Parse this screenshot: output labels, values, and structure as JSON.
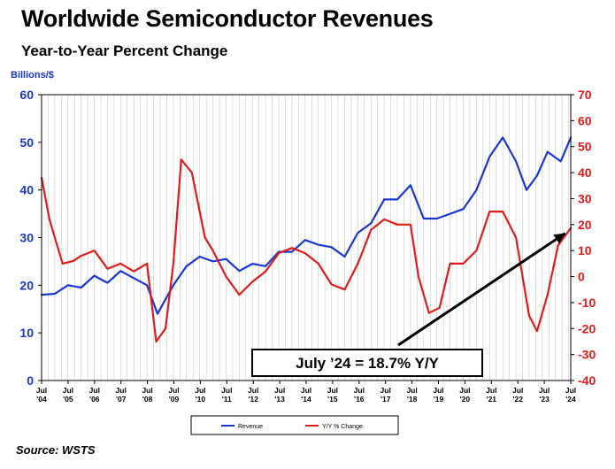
{
  "page": {
    "title": "Worldwide Semiconductor Revenues",
    "subtitle": "Year-to-Year Percent Change",
    "source": "Source: WSTS"
  },
  "chart_data": {
    "type": "line",
    "title": "Worldwide Semiconductor Revenues",
    "subtitle": "Year-to-Year Percent Change",
    "ylabel_left": "Billions/$",
    "ylim_left": [
      0,
      60
    ],
    "yticks_left": [
      0,
      10,
      20,
      30,
      40,
      50,
      60
    ],
    "ylim_right": [
      -40,
      70
    ],
    "yticks_right": [
      -40,
      -30,
      -20,
      -10,
      0,
      10,
      20,
      30,
      40,
      50,
      60,
      70
    ],
    "x_tick_labels": [
      "Jul\n'04",
      "Jul\n'05",
      "Jul\n'06",
      "Jul\n'07",
      "Jul\n'08",
      "Jul\n'09",
      "Jul\n'10",
      "Jul\n'11",
      "Jul\n'12",
      "Jul\n'13",
      "Jul\n'14",
      "Jul\n'15",
      "Jul\n'16",
      "Jul\n'17",
      "Jul\n'18",
      "Jul\n'19",
      "Jul\n'20",
      "Jul\n'21",
      "Jul\n'22",
      "Jul\n'23",
      "Jul\n'24"
    ],
    "grid": true,
    "legend": "bottom-center",
    "series": [
      {
        "name": "Revenue",
        "axis": "left",
        "color": "#1a35d6",
        "points": [
          [
            2004.5,
            18
          ],
          [
            2005,
            18.2
          ],
          [
            2005.5,
            20
          ],
          [
            2006,
            19.5
          ],
          [
            2006.5,
            22
          ],
          [
            2007,
            20.5
          ],
          [
            2007.5,
            23
          ],
          [
            2008,
            21.5
          ],
          [
            2008.5,
            20
          ],
          [
            2008.9,
            14
          ],
          [
            2009.5,
            20
          ],
          [
            2010,
            24
          ],
          [
            2010.5,
            26
          ],
          [
            2011,
            25
          ],
          [
            2011.5,
            25.5
          ],
          [
            2012,
            23
          ],
          [
            2012.5,
            24.5
          ],
          [
            2013,
            24
          ],
          [
            2013.5,
            27
          ],
          [
            2014,
            27
          ],
          [
            2014.5,
            29.5
          ],
          [
            2015,
            28.5
          ],
          [
            2015.5,
            28
          ],
          [
            2016,
            26
          ],
          [
            2016.5,
            31
          ],
          [
            2017,
            33
          ],
          [
            2017.5,
            38
          ],
          [
            2018,
            38
          ],
          [
            2018.5,
            41
          ],
          [
            2019,
            34
          ],
          [
            2019.5,
            34
          ],
          [
            2020,
            35
          ],
          [
            2020.5,
            36
          ],
          [
            2021,
            40
          ],
          [
            2021.5,
            47
          ],
          [
            2022,
            51
          ],
          [
            2022.5,
            46
          ],
          [
            2022.9,
            40
          ],
          [
            2023.3,
            43
          ],
          [
            2023.7,
            48
          ],
          [
            2024.2,
            46
          ],
          [
            2024.58,
            51
          ]
        ]
      },
      {
        "name": "Y/Y % Change",
        "axis": "right",
        "color": "#e31a1a",
        "points": [
          [
            2004.5,
            38
          ],
          [
            2004.8,
            22
          ],
          [
            2005,
            15
          ],
          [
            2005.3,
            5
          ],
          [
            2005.7,
            6
          ],
          [
            2006,
            8
          ],
          [
            2006.5,
            10
          ],
          [
            2007,
            3
          ],
          [
            2007.5,
            5
          ],
          [
            2008,
            2
          ],
          [
            2008.5,
            5
          ],
          [
            2008.85,
            -25
          ],
          [
            2009.2,
            -20
          ],
          [
            2009.5,
            5
          ],
          [
            2009.8,
            45
          ],
          [
            2010.2,
            40
          ],
          [
            2010.7,
            15
          ],
          [
            2011,
            10
          ],
          [
            2011.5,
            0
          ],
          [
            2012,
            -7
          ],
          [
            2012.5,
            -2
          ],
          [
            2013,
            2
          ],
          [
            2013.5,
            9
          ],
          [
            2014,
            11
          ],
          [
            2014.5,
            9
          ],
          [
            2015,
            5
          ],
          [
            2015.5,
            -3
          ],
          [
            2016,
            -5
          ],
          [
            2016.5,
            5
          ],
          [
            2017,
            18
          ],
          [
            2017.5,
            22
          ],
          [
            2018,
            20
          ],
          [
            2018.5,
            20
          ],
          [
            2018.8,
            0
          ],
          [
            2019.2,
            -14
          ],
          [
            2019.6,
            -12
          ],
          [
            2020,
            5
          ],
          [
            2020.5,
            5
          ],
          [
            2021,
            10
          ],
          [
            2021.5,
            25
          ],
          [
            2022,
            25
          ],
          [
            2022.5,
            15
          ],
          [
            2023,
            -15
          ],
          [
            2023.3,
            -21
          ],
          [
            2023.7,
            -7
          ],
          [
            2024.1,
            12
          ],
          [
            2024.58,
            18.7
          ]
        ]
      }
    ],
    "annotation": "July ’24 = 18.7% Y/Y"
  }
}
